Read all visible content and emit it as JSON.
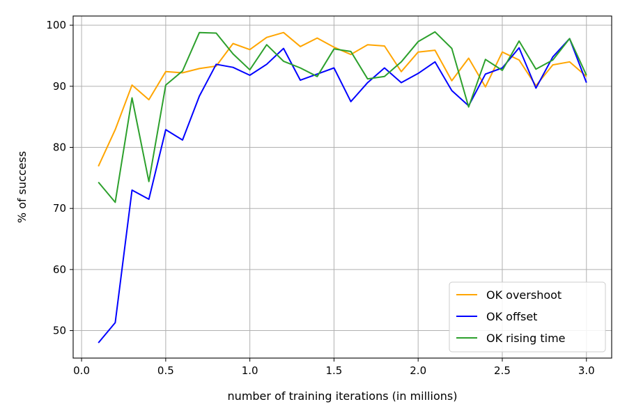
{
  "chart_data": {
    "type": "line",
    "title": "",
    "xlabel": "number of training iterations (in millions)",
    "ylabel": "% of success",
    "xlim": [
      -0.05,
      3.15
    ],
    "ylim": [
      45.5,
      101.5
    ],
    "xticks": [
      0.0,
      0.5,
      1.0,
      1.5,
      2.0,
      2.5,
      3.0
    ],
    "xtick_labels": [
      "0.0",
      "0.5",
      "1.0",
      "1.5",
      "2.0",
      "2.5",
      "3.0"
    ],
    "yticks": [
      50,
      60,
      70,
      80,
      90,
      100
    ],
    "ytick_labels": [
      "50",
      "60",
      "70",
      "80",
      "90",
      "100"
    ],
    "grid": true,
    "legend_position": "bottom-right",
    "x": [
      0.1,
      0.2,
      0.3,
      0.4,
      0.5,
      0.6,
      0.7,
      0.8,
      0.9,
      1.0,
      1.1,
      1.2,
      1.3,
      1.4,
      1.5,
      1.6,
      1.7,
      1.8,
      1.9,
      2.0,
      2.1,
      2.2,
      2.3,
      2.4,
      2.5,
      2.6,
      2.7,
      2.8,
      2.9,
      3.0
    ],
    "series": [
      {
        "name": "OK overshoot",
        "color": "#ffa500",
        "values": [
          76.9,
          82.9,
          90.2,
          87.8,
          92.4,
          92.2,
          92.9,
          93.3,
          97.0,
          96.0,
          98.0,
          98.8,
          96.5,
          97.9,
          96.4,
          95.2,
          96.8,
          96.6,
          92.4,
          95.6,
          95.9,
          90.9,
          94.6,
          89.9,
          95.6,
          94.3,
          90.1,
          93.5,
          94.0,
          91.6
        ]
      },
      {
        "name": "OK offset",
        "color": "#0000ff",
        "values": [
          48.0,
          51.3,
          73.0,
          71.5,
          82.9,
          81.2,
          88.4,
          93.6,
          93.1,
          91.8,
          93.6,
          96.2,
          91.0,
          92.0,
          93.0,
          87.5,
          90.6,
          93.0,
          90.6,
          92.1,
          94.0,
          89.3,
          86.8,
          92.0,
          93.0,
          96.3,
          89.7,
          94.8,
          97.8,
          90.6
        ]
      },
      {
        "name": "OK rising time",
        "color": "#2ca02c",
        "values": [
          74.3,
          71.0,
          88.1,
          74.4,
          90.2,
          92.5,
          98.8,
          98.7,
          95.3,
          92.7,
          96.8,
          94.1,
          93.0,
          91.6,
          96.1,
          95.7,
          91.2,
          91.6,
          94.0,
          97.3,
          98.9,
          96.2,
          86.6,
          94.4,
          92.6,
          97.4,
          92.8,
          94.3,
          97.8,
          91.8
        ]
      }
    ]
  }
}
